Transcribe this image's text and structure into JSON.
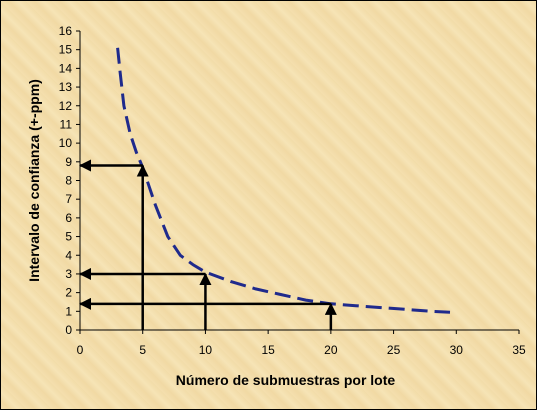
{
  "chart_data": {
    "type": "line",
    "title": "",
    "xlabel": "Número de submuestras por lote",
    "ylabel": "Intervalo de confianza (+-ppm)",
    "xlim": [
      0,
      35
    ],
    "ylim": [
      0,
      16
    ],
    "xticks": [
      0,
      5,
      10,
      15,
      20,
      25,
      30,
      35
    ],
    "yticks": [
      0,
      1,
      2,
      3,
      4,
      5,
      6,
      7,
      8,
      9,
      10,
      11,
      12,
      13,
      14,
      15,
      16
    ],
    "grid": false,
    "legend": "none",
    "series": [
      {
        "line_color": "#1f2a8c",
        "line_style": "dashed",
        "x": [
          3,
          3.2,
          3.5,
          4,
          4.5,
          5,
          6,
          7,
          8,
          9,
          10,
          12,
          14,
          16,
          18,
          20,
          22,
          24,
          26,
          28,
          29.5
        ],
        "y": [
          15.1,
          13.8,
          12.0,
          10.5,
          9.5,
          8.7,
          6.7,
          5.0,
          4.0,
          3.5,
          3.1,
          2.6,
          2.2,
          1.9,
          1.6,
          1.4,
          1.3,
          1.2,
          1.1,
          1.0,
          0.95
        ]
      }
    ],
    "annotations": [
      {
        "kind": "arrow-up",
        "from": [
          5,
          0
        ],
        "to": [
          5,
          8.8
        ]
      },
      {
        "kind": "arrow-left",
        "from": [
          5,
          8.8
        ],
        "to": [
          0,
          8.8
        ]
      },
      {
        "kind": "arrow-up",
        "from": [
          10,
          0
        ],
        "to": [
          10,
          3.0
        ]
      },
      {
        "kind": "arrow-left",
        "from": [
          10,
          3.0
        ],
        "to": [
          0,
          3.0
        ]
      },
      {
        "kind": "arrow-up",
        "from": [
          20,
          0
        ],
        "to": [
          20,
          1.4
        ]
      },
      {
        "kind": "arrow-left",
        "from": [
          20,
          1.4
        ],
        "to": [
          0,
          1.4
        ]
      }
    ]
  }
}
